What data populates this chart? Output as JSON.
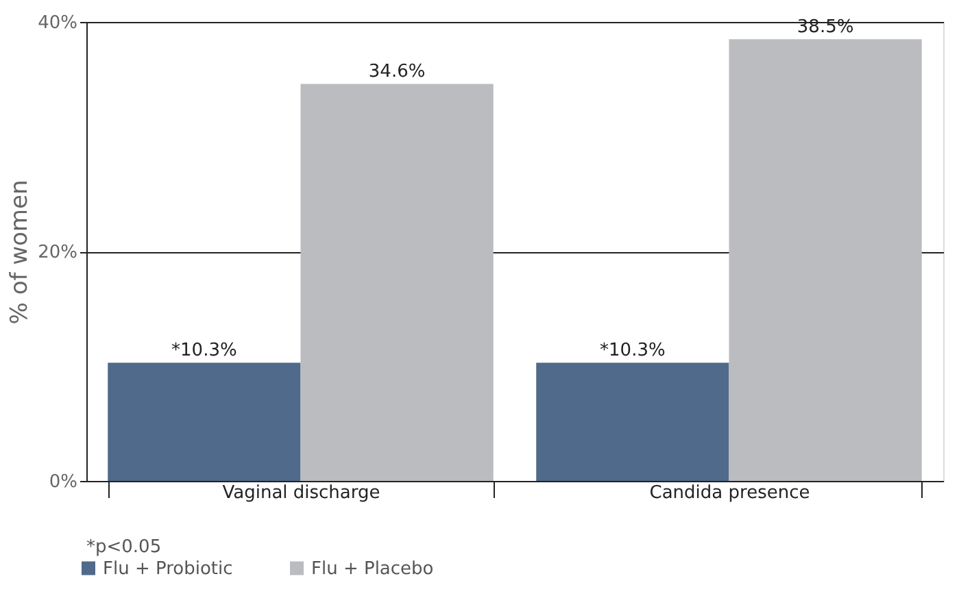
{
  "chart_data": {
    "type": "bar",
    "ylabel": "% of women",
    "categories": [
      "Vaginal discharge",
      "Candida presence"
    ],
    "series": [
      {
        "name": "Flu + Probiotic",
        "color": "#4f6a8a",
        "values": [
          10.3,
          10.3
        ],
        "value_labels": [
          "*10.3%",
          "*10.3%"
        ]
      },
      {
        "name": "Flu + Placebo",
        "color": "#bbbcc0",
        "values": [
          34.6,
          38.5
        ],
        "value_labels": [
          "34.6%",
          "38.5%"
        ]
      }
    ],
    "ylim": [
      0,
      40
    ],
    "yticks": [
      {
        "value": 0,
        "label": "0%"
      },
      {
        "value": 20,
        "label": "20%"
      },
      {
        "value": 40,
        "label": "40%"
      }
    ],
    "grid": "y",
    "legend": "bottom left",
    "annotations": [
      "*p<0.05"
    ]
  }
}
